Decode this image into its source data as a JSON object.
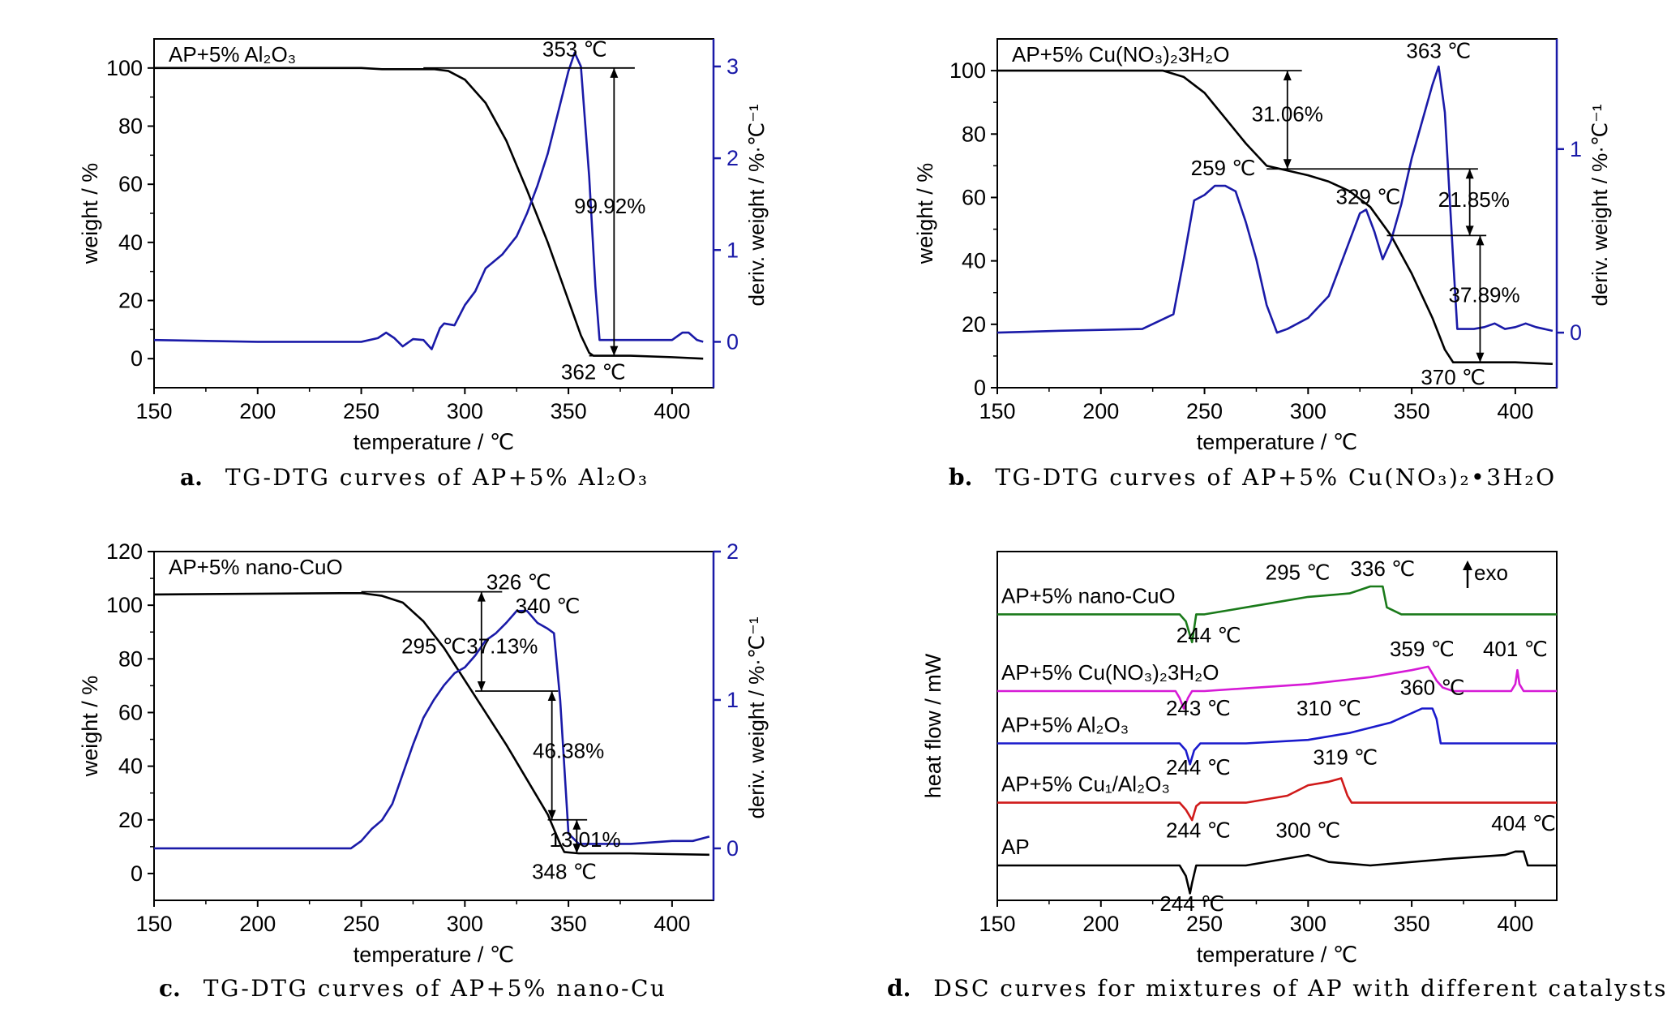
{
  "captions": {
    "a": {
      "letter": "a.",
      "text": "TG-DTG curves of AP+5% Al₂O₃"
    },
    "b": {
      "letter": "b.",
      "text": "TG-DTG curves of AP+5% Cu(NO₃)₂•3H₂O"
    },
    "c": {
      "letter": "c.",
      "text": "TG-DTG curves of AP+5% nano-Cu"
    },
    "d": {
      "letter": "d.",
      "text": "DSC curves for mixtures of AP with different catalysts"
    }
  },
  "colors": {
    "tg": "#000000",
    "dtg": "#1a1aa8",
    "axis_right": "#1a1aa8",
    "dsc_nanoCuO": "#1a7a1a",
    "dsc_CuNO3": "#d61ad6",
    "dsc_Al2O3": "#1a1acc",
    "dsc_CuAl2O3": "#d01a1a",
    "dsc_AP": "#000000"
  },
  "chart_data": [
    {
      "id": "a",
      "type": "line",
      "xlabel": "temperature / ℃",
      "ylabel": "weight / %",
      "y2label": "deriv. weight / %·℃⁻¹",
      "xlim": [
        150,
        420
      ],
      "ylim": [
        -10,
        110
      ],
      "y2lim": [
        -0.5,
        3.3
      ],
      "xticks": [
        150,
        200,
        250,
        300,
        350,
        400
      ],
      "yticks": [
        0,
        20,
        40,
        60,
        80,
        100
      ],
      "y2ticks": [
        0,
        1,
        2,
        3
      ],
      "legend": "AP+5% Al₂O₃",
      "series": [
        {
          "axis": "left",
          "color": "#000000",
          "x": [
            150,
            250,
            260,
            285,
            292,
            300,
            310,
            320,
            330,
            340,
            350,
            356,
            360,
            362,
            370,
            380,
            400,
            415
          ],
          "y": [
            100,
            100,
            99.6,
            99.6,
            99,
            96,
            88,
            75,
            58,
            40,
            20,
            8,
            2,
            1,
            1,
            1,
            0.5,
            0
          ]
        },
        {
          "axis": "right",
          "color": "#1a1aa8",
          "x": [
            150,
            200,
            250,
            258,
            262,
            266,
            270,
            275,
            280,
            284,
            288,
            290,
            295,
            300,
            305,
            310,
            318,
            325,
            330,
            335,
            340,
            345,
            350,
            353,
            356,
            360,
            363,
            365,
            370,
            380,
            400,
            405,
            408,
            412,
            415
          ],
          "y": [
            0.02,
            0,
            0,
            0.04,
            0.1,
            0.04,
            -0.05,
            0.03,
            0.02,
            -0.08,
            0.15,
            0.2,
            0.18,
            0.4,
            0.55,
            0.8,
            0.95,
            1.15,
            1.4,
            1.7,
            2.05,
            2.5,
            2.95,
            3.15,
            3.0,
            1.8,
            0.6,
            0.02,
            0.02,
            0.02,
            0.02,
            0.1,
            0.1,
            0.02,
            0.0
          ]
        }
      ],
      "annotations": [
        {
          "text": "353 ℃",
          "x": 353,
          "y": 104
        },
        {
          "text": "99.92%",
          "x": 370,
          "y": 50
        },
        {
          "text": "362 ℃",
          "x": 362,
          "y": -7
        }
      ]
    },
    {
      "id": "b",
      "type": "line",
      "xlabel": "temperature / ℃",
      "ylabel": "weight / %",
      "y2label": "deriv. weight / %·℃⁻¹",
      "xlim": [
        150,
        420
      ],
      "ylim": [
        0,
        110
      ],
      "y2lim": [
        -0.3,
        1.6
      ],
      "xticks": [
        150,
        200,
        250,
        300,
        350,
        400
      ],
      "yticks": [
        0,
        20,
        40,
        60,
        80,
        100
      ],
      "y2ticks": [
        0,
        1
      ],
      "legend": "AP+5% Cu(NO₃)₂3H₂O",
      "series": [
        {
          "axis": "left",
          "color": "#000000",
          "x": [
            150,
            230,
            240,
            250,
            260,
            270,
            280,
            290,
            300,
            310,
            320,
            330,
            340,
            350,
            360,
            366,
            370,
            380,
            400,
            418
          ],
          "y": [
            100,
            100,
            98,
            93,
            85,
            77,
            70,
            68.5,
            67,
            65,
            62,
            57,
            48,
            36,
            22,
            12,
            8,
            8,
            8,
            7.5
          ]
        },
        {
          "axis": "right",
          "color": "#1a1aa8",
          "x": [
            150,
            180,
            220,
            235,
            240,
            245,
            250,
            255,
            260,
            265,
            270,
            275,
            280,
            285,
            290,
            300,
            310,
            320,
            325,
            328,
            332,
            336,
            340,
            345,
            350,
            355,
            360,
            363,
            366,
            370,
            372,
            380,
            385,
            390,
            395,
            400,
            405,
            410,
            418
          ],
          "y": [
            0.0,
            0.01,
            0.02,
            0.1,
            0.4,
            0.72,
            0.75,
            0.8,
            0.8,
            0.77,
            0.6,
            0.4,
            0.15,
            0.0,
            0.02,
            0.08,
            0.2,
            0.5,
            0.65,
            0.67,
            0.55,
            0.4,
            0.5,
            0.7,
            0.95,
            1.15,
            1.35,
            1.45,
            1.2,
            0.4,
            0.02,
            0.02,
            0.03,
            0.05,
            0.02,
            0.03,
            0.05,
            0.03,
            0.01
          ]
        }
      ],
      "annotations": [
        {
          "text": "363 ℃",
          "x": 363,
          "y": 104
        },
        {
          "text": "31.06%",
          "x": 290,
          "y": 84
        },
        {
          "text": "259 ℃",
          "x": 259,
          "y": 67
        },
        {
          "text": "329 ℃",
          "x": 329,
          "y": 58
        },
        {
          "text": "21.85%",
          "x": 380,
          "y": 57
        },
        {
          "text": "37.89%",
          "x": 385,
          "y": 27
        },
        {
          "text": "370 ℃",
          "x": 370,
          "y": 1
        }
      ]
    },
    {
      "id": "c",
      "type": "line",
      "xlabel": "temperature / ℃",
      "ylabel": "weight / %",
      "y2label": "deriv. weight / %·℃⁻¹",
      "xlim": [
        150,
        420
      ],
      "ylim": [
        -10,
        120
      ],
      "y2lim": [
        -0.35,
        2
      ],
      "xticks": [
        150,
        200,
        250,
        300,
        350,
        400
      ],
      "yticks": [
        0,
        20,
        40,
        60,
        80,
        100,
        120
      ],
      "y2ticks": [
        0,
        1,
        2
      ],
      "legend": "AP+5% nano-CuO",
      "series": [
        {
          "axis": "left",
          "color": "#000000",
          "x": [
            150,
            240,
            250,
            260,
            270,
            280,
            290,
            300,
            310,
            320,
            330,
            340,
            346,
            348,
            355,
            380,
            418
          ],
          "y": [
            104,
            104.5,
            104.5,
            103.5,
            101,
            94,
            84,
            72,
            60,
            48,
            35,
            22,
            11,
            8,
            7.5,
            7.5,
            7
          ]
        },
        {
          "axis": "right",
          "color": "#1a1aa8",
          "x": [
            150,
            200,
            245,
            250,
            255,
            260,
            265,
            270,
            275,
            280,
            285,
            290,
            295,
            300,
            305,
            310,
            315,
            320,
            325,
            330,
            335,
            340,
            343,
            346,
            350,
            355,
            360,
            380,
            400,
            410,
            418
          ],
          "y": [
            0.0,
            0.0,
            0.0,
            0.05,
            0.13,
            0.19,
            0.3,
            0.5,
            0.7,
            0.88,
            1.0,
            1.1,
            1.18,
            1.22,
            1.3,
            1.4,
            1.45,
            1.52,
            1.6,
            1.6,
            1.52,
            1.48,
            1.45,
            1.0,
            0.1,
            0.03,
            0.03,
            0.03,
            0.05,
            0.05,
            0.08
          ]
        }
      ],
      "annotations": [
        {
          "text": "326 ℃",
          "x": 326,
          "y": 106
        },
        {
          "text": "340 ℃",
          "x": 340,
          "y": 97
        },
        {
          "text": "295 ℃",
          "x": 285,
          "y": 82
        },
        {
          "text": "37.13%",
          "x": 318,
          "y": 82
        },
        {
          "text": "46.38%",
          "x": 350,
          "y": 43
        },
        {
          "text": "13.01%",
          "x": 358,
          "y": 10
        },
        {
          "text": "348 ℃",
          "x": 348,
          "y": -2
        }
      ]
    },
    {
      "id": "d",
      "type": "line",
      "xlabel": "temperature / ℃",
      "ylabel": "heat flow / mW",
      "xlim": [
        150,
        420
      ],
      "xticks": [
        150,
        200,
        250,
        300,
        350,
        400
      ],
      "legend": "exo",
      "series": [
        {
          "name": "AP+5% nano-CuO",
          "color": "#1a7a1a",
          "offset": 0.82,
          "x": [
            150,
            238,
            241,
            243,
            244,
            246,
            250,
            270,
            290,
            300,
            320,
            330,
            336,
            338,
            345,
            420
          ],
          "y": [
            0,
            0,
            -0.02,
            -0.06,
            -0.08,
            0,
            0,
            0.02,
            0.04,
            0.05,
            0.06,
            0.08,
            0.08,
            0.02,
            0.0,
            0.0
          ]
        },
        {
          "name": "AP+5% Cu(NO₃)₂3H₂O",
          "color": "#d61ad6",
          "offset": 0.6,
          "x": [
            150,
            236,
            238,
            240,
            242,
            244,
            246,
            250,
            300,
            330,
            350,
            358,
            359,
            362,
            365,
            370,
            398,
            400,
            401,
            402,
            404,
            420
          ],
          "y": [
            0,
            0,
            -0.02,
            -0.05,
            -0.02,
            0,
            0,
            0,
            0.02,
            0.04,
            0.06,
            0.07,
            0.06,
            0.03,
            0.01,
            0.0,
            0.0,
            0.02,
            0.06,
            0.02,
            0.0,
            0.0
          ]
        },
        {
          "name": "AP+5% Al₂O₃",
          "color": "#1a1acc",
          "offset": 0.45,
          "x": [
            150,
            238,
            241,
            243,
            245,
            248,
            270,
            300,
            320,
            340,
            355,
            360,
            362,
            364,
            370,
            420
          ],
          "y": [
            0,
            0,
            -0.02,
            -0.06,
            -0.02,
            0,
            0,
            0.01,
            0.03,
            0.06,
            0.1,
            0.1,
            0.07,
            0.0,
            0.0,
            0.0
          ]
        },
        {
          "name": "AP+5% Cu₁/Al₂O₃",
          "color": "#d01a1a",
          "offset": 0.28,
          "x": [
            150,
            238,
            241,
            244,
            246,
            248,
            270,
            290,
            300,
            310,
            316,
            319,
            321,
            330,
            420
          ],
          "y": [
            0,
            0,
            -0.02,
            -0.05,
            -0.01,
            0,
            0,
            0.02,
            0.05,
            0.06,
            0.07,
            0.02,
            0.0,
            0.0,
            0.0
          ]
        },
        {
          "name": "AP",
          "color": "#000000",
          "offset": 0.1,
          "x": [
            150,
            238,
            241,
            243,
            244,
            246,
            250,
            270,
            290,
            300,
            310,
            330,
            370,
            395,
            400,
            404,
            406,
            420
          ],
          "y": [
            0,
            0,
            -0.03,
            -0.08,
            -0.05,
            0,
            0,
            0,
            0.02,
            0.03,
            0.01,
            0.0,
            0.02,
            0.03,
            0.04,
            0.04,
            0.0,
            0.0
          ]
        }
      ],
      "annotations": [
        {
          "text": "295 ℃",
          "x": 295,
          "y": 0.92
        },
        {
          "text": "336 ℃",
          "x": 336,
          "y": 0.93
        },
        {
          "text": "244 ℃",
          "x": 252,
          "y": 0.74
        },
        {
          "text": "359 ℃",
          "x": 355,
          "y": 0.7
        },
        {
          "text": "401 ℃",
          "x": 400,
          "y": 0.7
        },
        {
          "text": "243 ℃",
          "x": 247,
          "y": 0.53
        },
        {
          "text": "310 ℃",
          "x": 310,
          "y": 0.53
        },
        {
          "text": "360 ℃",
          "x": 360,
          "y": 0.59
        },
        {
          "text": "244 ℃",
          "x": 247,
          "y": 0.36
        },
        {
          "text": "319 ℃",
          "x": 318,
          "y": 0.39
        },
        {
          "text": "244 ℃",
          "x": 247,
          "y": 0.18
        },
        {
          "text": "300 ℃",
          "x": 300,
          "y": 0.18
        },
        {
          "text": "404 ℃",
          "x": 404,
          "y": 0.2
        },
        {
          "text": "244 ℃",
          "x": 244,
          "y": -0.03
        }
      ]
    }
  ]
}
